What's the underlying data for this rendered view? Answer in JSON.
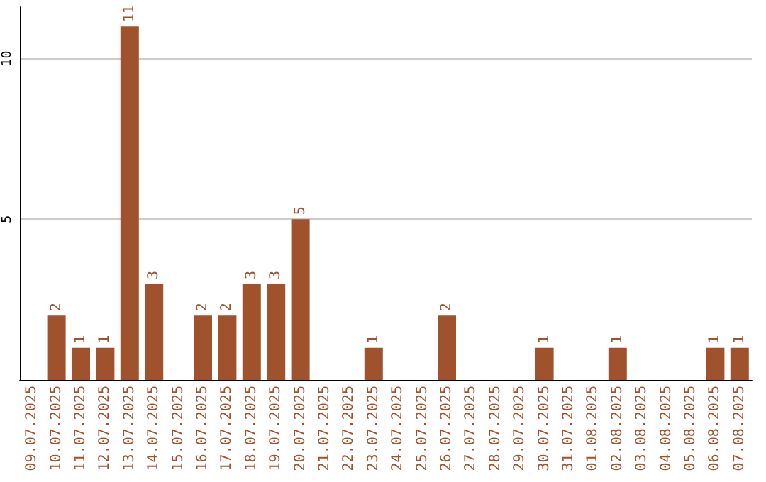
{
  "chart_data": {
    "type": "bar",
    "categories": [
      "09.07.2025",
      "10.07.2025",
      "11.07.2025",
      "12.07.2025",
      "13.07.2025",
      "14.07.2025",
      "15.07.2025",
      "16.07.2025",
      "17.07.2025",
      "18.07.2025",
      "19.07.2025",
      "20.07.2025",
      "21.07.2025",
      "22.07.2025",
      "23.07.2025",
      "24.07.2025",
      "25.07.2025",
      "26.07.2025",
      "27.07.2025",
      "28.07.2025",
      "29.07.2025",
      "30.07.2025",
      "31.07.2025",
      "01.08.2025",
      "02.08.2025",
      "03.08.2025",
      "04.08.2025",
      "05.08.2025",
      "06.08.2025",
      "07.08.2025"
    ],
    "values": [
      0,
      2,
      1,
      1,
      11,
      3,
      0,
      2,
      2,
      3,
      3,
      5,
      0,
      0,
      1,
      0,
      0,
      2,
      0,
      0,
      0,
      1,
      0,
      0,
      1,
      0,
      0,
      0,
      1,
      1
    ],
    "value_labels": [
      null,
      "2",
      "1",
      "1",
      "11",
      "3",
      null,
      "2",
      "2",
      "3",
      "3",
      "5",
      null,
      null,
      "1",
      null,
      null,
      "2",
      null,
      null,
      null,
      "1",
      null,
      null,
      "1",
      null,
      null,
      null,
      "1",
      "1"
    ],
    "color": "#a0522d",
    "ylim": [
      0,
      11.6
    ],
    "yticks": [
      5,
      10
    ],
    "grid": "y"
  }
}
